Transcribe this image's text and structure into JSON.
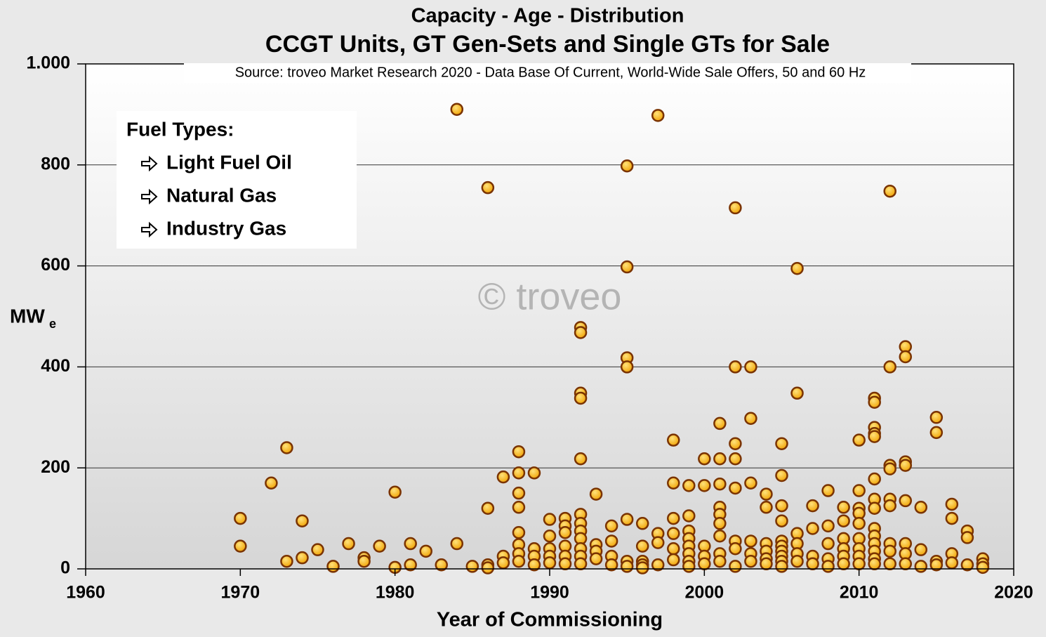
{
  "chart_data": {
    "type": "scatter",
    "title": "Capacity - Age - Distribution",
    "subtitle": "CCGT Units, GT Gen-Sets and Single GTs for Sale",
    "source": "Source: troveo Market Research 2020 - Data Base Of Current, World-Wide Sale Offers, 50 and 60 Hz",
    "watermark": "© troveo",
    "x_label": "Year of Commissioning",
    "y_label": "MW",
    "y_label_sub": "e",
    "legend_title": "Fuel Types:",
    "legend_items": [
      "Light Fuel Oil",
      "Natural Gas",
      "Industry Gas"
    ],
    "color": "#ffb000",
    "edge_color": "#7a3300",
    "grid": true,
    "xlim": [
      1960,
      2020
    ],
    "xticks": [
      1960,
      1970,
      1980,
      1990,
      2000,
      2010,
      2020
    ],
    "ylim": [
      0,
      1000
    ],
    "yticks": [
      0,
      200,
      400,
      600,
      800,
      {
        "value": 1000,
        "label": "1.000"
      }
    ],
    "x": [
      1970,
      1970,
      1972,
      1973,
      1973,
      1974,
      1974,
      1975,
      1976,
      1977,
      1978,
      1978,
      1979,
      1980,
      1980,
      1981,
      1981,
      1982,
      1983,
      1984,
      1984,
      1985,
      1986,
      1986,
      1986,
      1986,
      1987,
      1987,
      1987,
      1988,
      1988,
      1988,
      1988,
      1988,
      1988,
      1988,
      1988,
      1989,
      1989,
      1989,
      1989,
      1990,
      1990,
      1990,
      1990,
      1990,
      1991,
      1991,
      1991,
      1991,
      1991,
      1991,
      1992,
      1992,
      1992,
      1992,
      1992,
      1992,
      1992,
      1992,
      1992,
      1992,
      1992,
      1992,
      1993,
      1993,
      1993,
      1993,
      1994,
      1994,
      1994,
      1994,
      1995,
      1995,
      1995,
      1995,
      1995,
      1995,
      1995,
      1996,
      1996,
      1996,
      1996,
      1996,
      1997,
      1997,
      1997,
      1997,
      1998,
      1998,
      1998,
      1998,
      1998,
      1998,
      1999,
      1999,
      1999,
      1999,
      1999,
      1999,
      1999,
      1999,
      2000,
      2000,
      2000,
      2000,
      2000,
      2001,
      2001,
      2001,
      2001,
      2001,
      2001,
      2001,
      2001,
      2001,
      2002,
      2002,
      2002,
      2002,
      2002,
      2002,
      2002,
      2002,
      2003,
      2003,
      2003,
      2003,
      2003,
      2003,
      2004,
      2004,
      2004,
      2004,
      2004,
      2004,
      2005,
      2005,
      2005,
      2005,
      2005,
      2005,
      2005,
      2005,
      2005,
      2005,
      2006,
      2006,
      2006,
      2006,
      2006,
      2006,
      2007,
      2007,
      2007,
      2007,
      2008,
      2008,
      2008,
      2008,
      2008,
      2009,
      2009,
      2009,
      2009,
      2009,
      2009,
      2010,
      2010,
      2010,
      2010,
      2010,
      2010,
      2010,
      2010,
      2010,
      2011,
      2011,
      2011,
      2011,
      2011,
      2011,
      2011,
      2011,
      2011,
      2011,
      2011,
      2011,
      2011,
      2011,
      2012,
      2012,
      2012,
      2012,
      2012,
      2012,
      2012,
      2012,
      2012,
      2013,
      2013,
      2013,
      2013,
      2013,
      2013,
      2013,
      2013,
      2014,
      2014,
      2014,
      2015,
      2015,
      2015,
      2015,
      2016,
      2016,
      2016,
      2016,
      2017,
      2017,
      2017,
      2018,
      2018,
      2018
    ],
    "values": [
      100,
      45,
      170,
      240,
      15,
      95,
      22,
      38,
      5,
      50,
      22,
      15,
      45,
      152,
      3,
      50,
      8,
      35,
      8,
      910,
      50,
      5,
      755,
      120,
      8,
      2,
      182,
      25,
      12,
      232,
      190,
      150,
      122,
      72,
      48,
      30,
      15,
      190,
      40,
      25,
      8,
      98,
      65,
      40,
      25,
      12,
      100,
      85,
      72,
      45,
      25,
      10,
      478,
      468,
      348,
      338,
      218,
      108,
      90,
      75,
      60,
      40,
      25,
      10,
      148,
      48,
      35,
      20,
      85,
      55,
      25,
      8,
      798,
      598,
      418,
      400,
      98,
      15,
      5,
      90,
      45,
      15,
      8,
      2,
      898,
      70,
      52,
      8,
      255,
      170,
      100,
      70,
      40,
      18,
      165,
      105,
      75,
      60,
      45,
      30,
      15,
      5,
      218,
      165,
      45,
      25,
      10,
      288,
      218,
      168,
      122,
      108,
      90,
      65,
      30,
      15,
      715,
      400,
      248,
      218,
      160,
      55,
      40,
      5,
      400,
      298,
      170,
      55,
      30,
      15,
      148,
      122,
      50,
      35,
      20,
      10,
      248,
      185,
      125,
      95,
      55,
      45,
      35,
      25,
      15,
      5,
      595,
      348,
      70,
      50,
      30,
      15,
      125,
      80,
      25,
      10,
      155,
      85,
      50,
      20,
      5,
      122,
      95,
      60,
      40,
      25,
      10,
      255,
      155,
      120,
      110,
      90,
      60,
      40,
      25,
      10,
      338,
      330,
      280,
      268,
      262,
      178,
      138,
      120,
      80,
      65,
      50,
      35,
      20,
      10,
      748,
      400,
      205,
      198,
      138,
      125,
      50,
      35,
      10,
      440,
      420,
      212,
      205,
      135,
      50,
      30,
      10,
      122,
      38,
      5,
      300,
      270,
      15,
      8,
      128,
      100,
      30,
      12,
      75,
      62,
      8,
      20,
      10,
      3
    ]
  }
}
